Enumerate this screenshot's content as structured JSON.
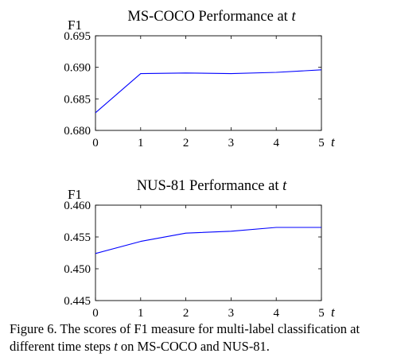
{
  "chart_data": [
    {
      "type": "line",
      "title": "MS-COCO Performance at ",
      "title_var": "t",
      "ylabel": "F1",
      "xlabel": "t",
      "x": [
        0,
        1,
        2,
        3,
        4,
        5
      ],
      "xticks": [
        "0",
        "1",
        "2",
        "3",
        "4",
        "5"
      ],
      "yticks": [
        "0.680",
        "0.685",
        "0.690",
        "0.695"
      ],
      "ylim": [
        0.68,
        0.695
      ],
      "xlim": [
        0,
        5
      ],
      "series": [
        {
          "values": [
            0.6828,
            0.689,
            0.6891,
            0.689,
            0.6892,
            0.6896
          ]
        }
      ],
      "line_color": "#0000ff",
      "grid": false
    },
    {
      "type": "line",
      "title": "NUS-81 Performance at ",
      "title_var": "t",
      "ylabel": "F1",
      "xlabel": "t",
      "x": [
        0,
        1,
        2,
        3,
        4,
        5
      ],
      "xticks": [
        "0",
        "1",
        "2",
        "3",
        "4",
        "5"
      ],
      "yticks": [
        "0.445",
        "0.450",
        "0.455",
        "0.460"
      ],
      "ylim": [
        0.445,
        0.46
      ],
      "xlim": [
        0,
        5
      ],
      "series": [
        {
          "values": [
            0.4524,
            0.4543,
            0.4556,
            0.4559,
            0.4565,
            0.4565
          ]
        }
      ],
      "line_color": "#0000ff",
      "grid": false
    }
  ],
  "caption": {
    "part1": "Figure 6. The scores of F1 measure for multi-label classification at different time steps ",
    "var": "t",
    "part2": " on MS-COCO and NUS-81."
  }
}
